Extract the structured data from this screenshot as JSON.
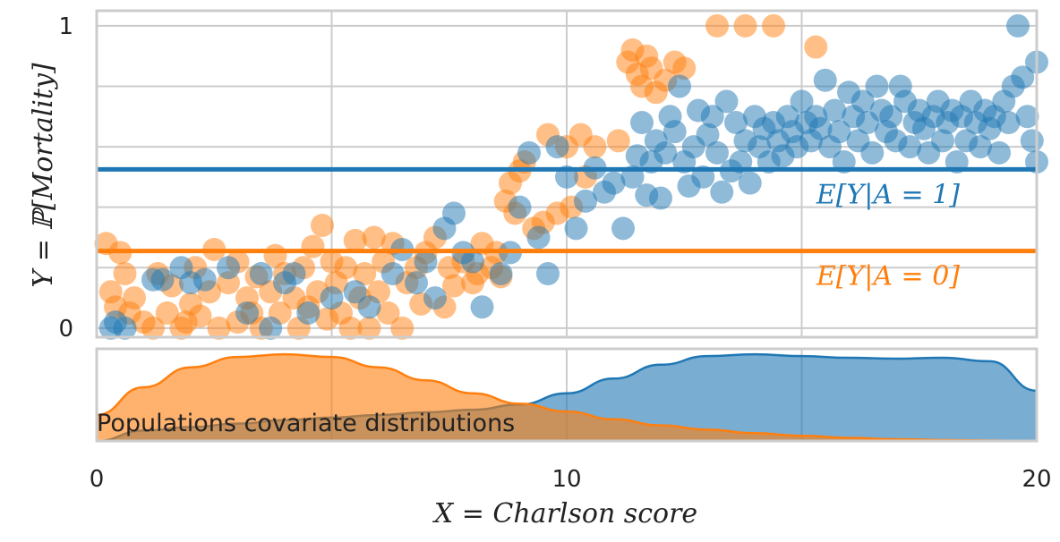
{
  "chart_data": {
    "type": "scatter",
    "xlabel": "X = Charlson score",
    "ylabel": "Y = ℙ[Mortality]",
    "xlim": [
      0,
      20
    ],
    "ylim": [
      -0.03,
      1.05
    ],
    "x_ticks": [
      0,
      10,
      20
    ],
    "y_ticks": [
      0,
      1
    ],
    "grid": true,
    "colors": {
      "A1": "#1f77b4",
      "A0": "#ff7f0e"
    },
    "series": [
      {
        "group": "A=0",
        "points": [
          [
            0.2,
            0.28
          ],
          [
            0.3,
            0.12
          ],
          [
            0.4,
            0.07
          ],
          [
            0.5,
            0.25
          ],
          [
            0.6,
            0.18
          ],
          [
            0.7,
            0.05
          ],
          [
            0.8,
            0.1
          ],
          [
            1.0,
            0.02
          ],
          [
            1.2,
            0.0
          ],
          [
            1.3,
            0.18
          ],
          [
            1.5,
            0.05
          ],
          [
            1.6,
            0.14
          ],
          [
            1.8,
            0.0
          ],
          [
            1.9,
            0.02
          ],
          [
            2.0,
            0.08
          ],
          [
            2.1,
            0.2
          ],
          [
            2.2,
            0.04
          ],
          [
            2.4,
            0.12
          ],
          [
            2.5,
            0.26
          ],
          [
            2.6,
            0.0
          ],
          [
            2.8,
            0.15
          ],
          [
            3.0,
            0.02
          ],
          [
            3.0,
            0.22
          ],
          [
            3.2,
            0.1
          ],
          [
            3.3,
            0.05
          ],
          [
            3.4,
            0.17
          ],
          [
            3.5,
            0.0
          ],
          [
            3.7,
            0.12
          ],
          [
            3.8,
            0.24
          ],
          [
            3.9,
            0.05
          ],
          [
            4.0,
            0.18
          ],
          [
            4.2,
            0.1
          ],
          [
            4.3,
            0.0
          ],
          [
            4.4,
            0.2
          ],
          [
            4.5,
            0.07
          ],
          [
            4.6,
            0.27
          ],
          [
            4.7,
            0.12
          ],
          [
            4.8,
            0.34
          ],
          [
            4.9,
            0.03
          ],
          [
            5.0,
            0.22
          ],
          [
            5.1,
            0.15
          ],
          [
            5.2,
            0.05
          ],
          [
            5.3,
            0.2
          ],
          [
            5.4,
            0.0
          ],
          [
            5.5,
            0.29
          ],
          [
            5.6,
            0.1
          ],
          [
            5.7,
            0.18
          ],
          [
            5.8,
            0.0
          ],
          [
            5.9,
            0.3
          ],
          [
            6.0,
            0.12
          ],
          [
            6.1,
            0.22
          ],
          [
            6.2,
            0.05
          ],
          [
            6.3,
            0.28
          ],
          [
            6.5,
            0.0
          ],
          [
            6.6,
            0.15
          ],
          [
            6.8,
            0.2
          ],
          [
            6.9,
            0.08
          ],
          [
            7.0,
            0.25
          ],
          [
            7.2,
            0.3
          ],
          [
            7.4,
            0.07
          ],
          [
            7.5,
            0.2
          ],
          [
            7.6,
            0.14
          ],
          [
            7.8,
            0.22
          ],
          [
            8.0,
            0.15
          ],
          [
            8.1,
            0.18
          ],
          [
            8.2,
            0.28
          ],
          [
            8.4,
            0.2
          ],
          [
            8.5,
            0.25
          ],
          [
            8.6,
            0.17
          ],
          [
            8.7,
            0.42
          ],
          [
            8.8,
            0.48
          ],
          [
            8.9,
            0.38
          ],
          [
            9.0,
            0.52
          ],
          [
            9.1,
            0.55
          ],
          [
            9.3,
            0.33
          ],
          [
            9.5,
            0.35
          ],
          [
            9.6,
            0.64
          ],
          [
            9.8,
            0.38
          ],
          [
            10.0,
            0.6
          ],
          [
            10.1,
            0.4
          ],
          [
            10.3,
            0.64
          ],
          [
            10.4,
            0.5
          ],
          [
            10.6,
            0.6
          ],
          [
            11.1,
            0.62
          ],
          [
            11.3,
            0.88
          ],
          [
            11.4,
            0.92
          ],
          [
            11.5,
            0.84
          ],
          [
            11.6,
            0.8
          ],
          [
            11.7,
            0.9
          ],
          [
            11.8,
            0.86
          ],
          [
            11.9,
            0.78
          ],
          [
            12.1,
            0.82
          ],
          [
            12.3,
            0.88
          ],
          [
            12.5,
            0.86
          ],
          [
            13.2,
            1.0
          ],
          [
            13.8,
            1.0
          ],
          [
            14.4,
            1.0
          ],
          [
            15.3,
            0.93
          ]
        ]
      },
      {
        "group": "A=1",
        "points": [
          [
            0.3,
            0.0
          ],
          [
            0.4,
            0.02
          ],
          [
            0.6,
            0.0
          ],
          [
            1.2,
            0.16
          ],
          [
            1.4,
            0.16
          ],
          [
            1.8,
            0.2
          ],
          [
            2.0,
            0.15
          ],
          [
            2.3,
            0.16
          ],
          [
            2.8,
            0.2
          ],
          [
            3.2,
            0.05
          ],
          [
            3.5,
            0.18
          ],
          [
            3.7,
            0.0
          ],
          [
            4.0,
            0.15
          ],
          [
            4.2,
            0.18
          ],
          [
            4.5,
            0.05
          ],
          [
            5.0,
            0.1
          ],
          [
            5.5,
            0.12
          ],
          [
            5.8,
            0.07
          ],
          [
            6.3,
            0.18
          ],
          [
            6.5,
            0.26
          ],
          [
            6.8,
            0.15
          ],
          [
            7.0,
            0.22
          ],
          [
            7.2,
            0.1
          ],
          [
            7.4,
            0.33
          ],
          [
            7.6,
            0.38
          ],
          [
            7.8,
            0.25
          ],
          [
            8.0,
            0.22
          ],
          [
            8.2,
            0.07
          ],
          [
            8.6,
            0.18
          ],
          [
            8.8,
            0.25
          ],
          [
            9.0,
            0.4
          ],
          [
            9.2,
            0.58
          ],
          [
            9.4,
            0.3
          ],
          [
            9.6,
            0.18
          ],
          [
            9.8,
            0.6
          ],
          [
            10.0,
            0.5
          ],
          [
            10.2,
            0.33
          ],
          [
            10.4,
            0.42
          ],
          [
            10.6,
            0.53
          ],
          [
            10.8,
            0.45
          ],
          [
            11.0,
            0.48
          ],
          [
            11.2,
            0.33
          ],
          [
            11.4,
            0.5
          ],
          [
            11.5,
            0.57
          ],
          [
            11.6,
            0.68
          ],
          [
            11.7,
            0.44
          ],
          [
            11.8,
            0.55
          ],
          [
            11.9,
            0.62
          ],
          [
            12.0,
            0.43
          ],
          [
            12.1,
            0.58
          ],
          [
            12.2,
            0.7
          ],
          [
            12.3,
            0.65
          ],
          [
            12.4,
            0.8
          ],
          [
            12.5,
            0.55
          ],
          [
            12.6,
            0.47
          ],
          [
            12.7,
            0.6
          ],
          [
            12.8,
            0.72
          ],
          [
            12.9,
            0.5
          ],
          [
            13.0,
            0.64
          ],
          [
            13.1,
            0.7
          ],
          [
            13.2,
            0.58
          ],
          [
            13.3,
            0.45
          ],
          [
            13.4,
            0.75
          ],
          [
            13.5,
            0.52
          ],
          [
            13.6,
            0.68
          ],
          [
            13.7,
            0.55
          ],
          [
            13.8,
            0.62
          ],
          [
            13.9,
            0.48
          ],
          [
            14.0,
            0.7
          ],
          [
            14.1,
            0.6
          ],
          [
            14.2,
            0.66
          ],
          [
            14.3,
            0.55
          ],
          [
            14.4,
            0.68
          ],
          [
            14.5,
            0.62
          ],
          [
            14.6,
            0.57
          ],
          [
            14.7,
            0.7
          ],
          [
            14.8,
            0.65
          ],
          [
            14.9,
            0.6
          ],
          [
            15.0,
            0.75
          ],
          [
            15.1,
            0.68
          ],
          [
            15.2,
            0.62
          ],
          [
            15.3,
            0.7
          ],
          [
            15.4,
            0.66
          ],
          [
            15.5,
            0.82
          ],
          [
            15.6,
            0.6
          ],
          [
            15.7,
            0.72
          ],
          [
            15.8,
            0.65
          ],
          [
            15.9,
            0.55
          ],
          [
            16.0,
            0.78
          ],
          [
            16.1,
            0.7
          ],
          [
            16.2,
            0.62
          ],
          [
            16.3,
            0.75
          ],
          [
            16.4,
            0.68
          ],
          [
            16.5,
            0.58
          ],
          [
            16.6,
            0.8
          ],
          [
            16.7,
            0.72
          ],
          [
            16.8,
            0.65
          ],
          [
            16.9,
            0.7
          ],
          [
            17.0,
            0.62
          ],
          [
            17.1,
            0.8
          ],
          [
            17.2,
            0.75
          ],
          [
            17.3,
            0.6
          ],
          [
            17.4,
            0.68
          ],
          [
            17.5,
            0.72
          ],
          [
            17.6,
            0.66
          ],
          [
            17.7,
            0.58
          ],
          [
            17.8,
            0.7
          ],
          [
            17.9,
            0.75
          ],
          [
            18.0,
            0.62
          ],
          [
            18.1,
            0.68
          ],
          [
            18.2,
            0.72
          ],
          [
            18.3,
            0.55
          ],
          [
            18.4,
            0.7
          ],
          [
            18.5,
            0.62
          ],
          [
            18.6,
            0.75
          ],
          [
            18.7,
            0.68
          ],
          [
            18.8,
            0.6
          ],
          [
            18.9,
            0.72
          ],
          [
            19.0,
            0.66
          ],
          [
            19.1,
            0.7
          ],
          [
            19.2,
            0.58
          ],
          [
            19.3,
            0.75
          ],
          [
            19.4,
            0.68
          ],
          [
            19.5,
            0.8
          ],
          [
            19.6,
            1.0
          ],
          [
            19.7,
            0.83
          ],
          [
            19.8,
            0.7
          ],
          [
            19.9,
            0.62
          ],
          [
            20.0,
            0.55
          ],
          [
            20.0,
            0.88
          ]
        ]
      }
    ],
    "hlines": [
      {
        "group": "A=1",
        "y": 0.525,
        "label": "E[Y|A = 1]"
      },
      {
        "group": "A=0",
        "y": 0.255,
        "label": "E[Y|A = 0]"
      }
    ],
    "density_panel": {
      "caption": "Populations covariate distributions",
      "x": [
        0,
        1,
        2,
        3,
        4,
        5,
        6,
        7,
        8,
        9,
        10,
        11,
        12,
        13,
        14,
        15,
        16,
        17,
        18,
        19,
        20
      ],
      "A0": [
        0.3,
        0.62,
        0.85,
        0.97,
        1.0,
        0.97,
        0.85,
        0.7,
        0.55,
        0.43,
        0.34,
        0.25,
        0.18,
        0.13,
        0.09,
        0.06,
        0.035,
        0.02,
        0.01,
        0.005,
        0.0
      ],
      "A1": [
        0.0,
        0.12,
        0.16,
        0.2,
        0.24,
        0.27,
        0.3,
        0.33,
        0.36,
        0.42,
        0.55,
        0.72,
        0.88,
        0.98,
        1.0,
        0.98,
        0.96,
        0.95,
        0.96,
        0.92,
        0.58
      ]
    }
  }
}
